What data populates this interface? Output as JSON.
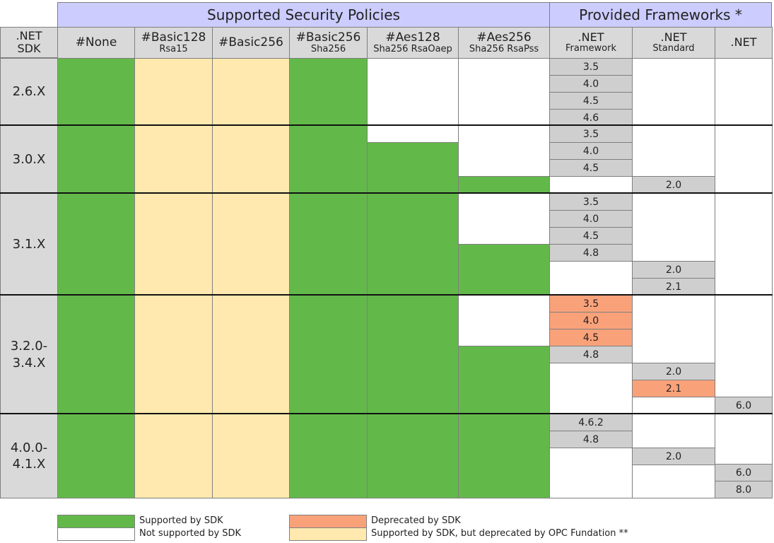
{
  "header": {
    "policies_title": "Supported Security Policies",
    "frameworks_title": "Provided Frameworks *",
    "sdk_col": ".NET\nSDK",
    "policies": [
      {
        "l1": "#None",
        "l2": ""
      },
      {
        "l1": "#Basic128",
        "l2": "Rsa15"
      },
      {
        "l1": "#Basic256",
        "l2": ""
      },
      {
        "l1": "#Basic256",
        "l2": "Sha256"
      },
      {
        "l1": "#Aes128",
        "l2": "Sha256 RsaOaep"
      },
      {
        "l1": "#Aes256",
        "l2": "Sha256 RsaPss"
      }
    ],
    "frameworks": [
      {
        "l1": ".NET",
        "l2": "Framework"
      },
      {
        "l1": ".NET",
        "l2": "Standard"
      },
      {
        "l1": ".NET",
        "l2": ""
      }
    ]
  },
  "rows": [
    {
      "sdk": "2.6.X",
      "policies": [
        [
          [
            1,
            "green"
          ]
        ],
        [
          [
            1,
            "yellow"
          ]
        ],
        [
          [
            1,
            "yellow"
          ]
        ],
        [
          [
            1,
            "green"
          ]
        ],
        [
          [
            1,
            "white"
          ]
        ],
        [
          [
            1,
            "white"
          ]
        ]
      ],
      "framework": [
        [
          "3.5",
          "grey"
        ],
        [
          "4.0",
          "grey"
        ],
        [
          "4.5",
          "grey"
        ],
        [
          "4.6",
          "grey"
        ]
      ],
      "standard": [],
      "net": []
    },
    {
      "sdk": "3.0.X",
      "policies": [
        [
          [
            1,
            "green"
          ]
        ],
        [
          [
            1,
            "yellow"
          ]
        ],
        [
          [
            1,
            "yellow"
          ]
        ],
        [
          [
            1,
            "green"
          ]
        ],
        [
          [
            1,
            "white"
          ],
          [
            3,
            "green"
          ]
        ],
        [
          [
            3,
            "white"
          ],
          [
            1,
            "green"
          ]
        ]
      ],
      "framework": [
        [
          "3.5",
          "grey"
        ],
        [
          "4.0",
          "grey"
        ],
        [
          "4.5",
          "grey"
        ]
      ],
      "standard": [
        [
          "2.0",
          "grey"
        ]
      ],
      "net": []
    },
    {
      "sdk": "3.1.X",
      "policies": [
        [
          [
            1,
            "green"
          ]
        ],
        [
          [
            1,
            "yellow"
          ]
        ],
        [
          [
            1,
            "yellow"
          ]
        ],
        [
          [
            1,
            "green"
          ]
        ],
        [
          [
            1,
            "green"
          ]
        ],
        [
          [
            3,
            "white"
          ],
          [
            3,
            "green"
          ]
        ]
      ],
      "framework": [
        [
          "3.5",
          "grey"
        ],
        [
          "4.0",
          "grey"
        ],
        [
          "4.5",
          "grey"
        ],
        [
          "4.8",
          "grey"
        ]
      ],
      "standard": [
        [
          "2.0",
          "grey"
        ],
        [
          "2.1",
          "grey"
        ]
      ],
      "net": []
    },
    {
      "sdk": "3.2.0-\n3.4.X",
      "policies": [
        [
          [
            1,
            "green"
          ]
        ],
        [
          [
            1,
            "yellow"
          ]
        ],
        [
          [
            1,
            "yellow"
          ]
        ],
        [
          [
            1,
            "green"
          ]
        ],
        [
          [
            1,
            "green"
          ]
        ],
        [
          [
            3,
            "white"
          ],
          [
            4,
            "green"
          ]
        ]
      ],
      "framework": [
        [
          "3.5",
          "orange"
        ],
        [
          "4.0",
          "orange"
        ],
        [
          "4.5",
          "orange"
        ],
        [
          "4.8",
          "grey"
        ]
      ],
      "standard": [
        [
          "2.0",
          "grey"
        ],
        [
          "2.1",
          "orange"
        ]
      ],
      "net": [
        [
          "6.0",
          "grey"
        ]
      ]
    },
    {
      "sdk": "4.0.0-\n4.1.X",
      "policies": [
        [
          [
            1,
            "green"
          ]
        ],
        [
          [
            1,
            "yellow"
          ]
        ],
        [
          [
            1,
            "yellow"
          ]
        ],
        [
          [
            1,
            "green"
          ]
        ],
        [
          [
            1,
            "green"
          ]
        ],
        [
          [
            1,
            "green"
          ]
        ]
      ],
      "framework": [
        [
          "4.6.2",
          "grey"
        ],
        [
          "4.8",
          "grey"
        ]
      ],
      "standard": [
        [
          "2.0",
          "grey"
        ]
      ],
      "net": [
        [
          "6.0",
          "grey"
        ],
        [
          "8.0",
          "grey"
        ]
      ]
    }
  ],
  "legend": [
    {
      "label": "Supported by SDK",
      "color": "green"
    },
    {
      "label": "Not supported by SDK",
      "color": "white"
    },
    {
      "label": "Deprecated by SDK",
      "color": "orange"
    },
    {
      "label": "Supported by SDK, but deprecated by OPC Fundation **",
      "color": "yellow"
    }
  ]
}
